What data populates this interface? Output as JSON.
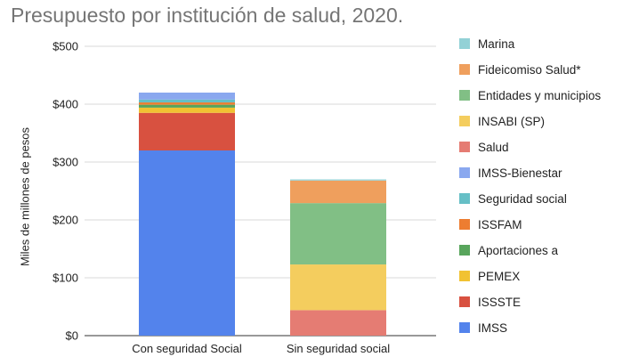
{
  "chart_data": {
    "type": "bar",
    "stacked": true,
    "title": "Presupuesto por institución de salud, 2020.",
    "xlabel": "",
    "ylabel": "Miles de millones de pesos",
    "ylim": [
      0,
      500
    ],
    "yticks": [
      "$0",
      "$100",
      "$200",
      "$300",
      "$400",
      "$500"
    ],
    "ytick_values": [
      0,
      100,
      200,
      300,
      400,
      500
    ],
    "grid": true,
    "legend_position": "right",
    "categories": [
      "Con seguridad Social",
      "Sin seguridad social"
    ],
    "series": [
      {
        "name": "IMSS",
        "color": "#5383ec",
        "values": [
          320,
          0
        ]
      },
      {
        "name": "ISSSTE",
        "color": "#d85140",
        "values": [
          65,
          0
        ]
      },
      {
        "name": "PEMEX",
        "color": "#f1c232",
        "values": [
          9,
          0
        ]
      },
      {
        "name": "Aportaciones a",
        "color": "#58a55c",
        "values": [
          5,
          0
        ]
      },
      {
        "name": "ISSFAM",
        "color": "#ed7d31",
        "values": [
          4,
          0
        ]
      },
      {
        "name": "Seguridad social",
        "color": "#66bfc6",
        "values": [
          5,
          0
        ]
      },
      {
        "name": "IMSS-Bienestar",
        "color": "#8aa8ef",
        "values": [
          12,
          0
        ]
      },
      {
        "name": "Salud",
        "color": "#e57c73",
        "values": [
          0,
          44
        ]
      },
      {
        "name": "INSABI (SP)",
        "color": "#f4cd5e",
        "values": [
          0,
          79
        ]
      },
      {
        "name": "Entidades y municipios",
        "color": "#81bf85",
        "values": [
          0,
          106
        ]
      },
      {
        "name": "Fideicomiso Salud*",
        "color": "#ef9f5d",
        "values": [
          0,
          39
        ]
      },
      {
        "name": "Marina",
        "color": "#93d1d6",
        "values": [
          0,
          2
        ]
      }
    ]
  },
  "legend_order": [
    "Marina",
    "Fideicomiso Salud*",
    "Entidades y municipios",
    "INSABI (SP)",
    "Salud",
    "IMSS-Bienestar",
    "Seguridad social",
    "ISSFAM",
    "Aportaciones a",
    "PEMEX",
    "ISSSTE",
    "IMSS"
  ]
}
